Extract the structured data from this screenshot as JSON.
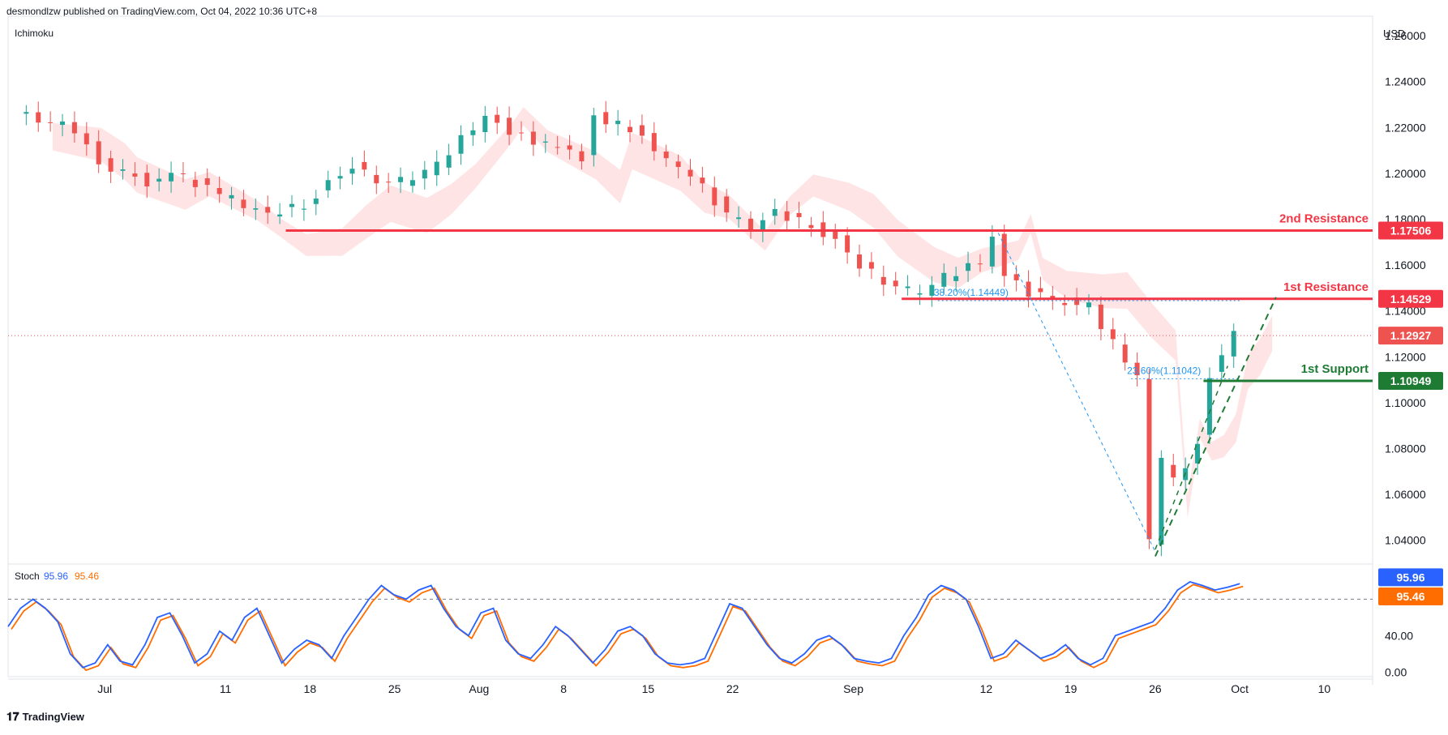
{
  "header": {
    "published": "desmondlzw published on TradingView.com, Oct 04, 2022 10:36 UTC+8"
  },
  "footer": {
    "brand": "TradingView",
    "logo_icon": "tradingview-logo-icon"
  },
  "colors": {
    "up": "#26a69a",
    "down": "#ef5350",
    "candle_up": "#26a69a",
    "candle_down": "#ef5350",
    "resistance": "#f23645",
    "support": "#1e7b34",
    "cloud_bull": "#a5d6a7",
    "cloud_bear": "#ffcdd2",
    "stoch_k": "#2962ff",
    "stoch_d": "#ff6d00"
  },
  "chart_data": [
    {
      "type": "candlestick",
      "indicator_label": "Ichimoku",
      "currency_label": "USD",
      "ylim": [
        1.03,
        1.265
      ],
      "y_ticks": [
        "1.26000",
        "1.24000",
        "1.22000",
        "1.20000",
        "1.18000",
        "1.16000",
        "1.14000",
        "1.12000",
        "1.10000",
        "1.08000",
        "1.06000",
        "1.04000"
      ],
      "x_ticks": [
        "Jul",
        "11",
        "18",
        "25",
        "Aug",
        "8",
        "15",
        "22",
        "Sep",
        "12",
        "19",
        "26",
        "Oct",
        "10"
      ],
      "last_price": "1.12927",
      "levels": [
        {
          "label": "2nd Resistance",
          "value": "1.17506",
          "kind": "resistance"
        },
        {
          "label": "1st Resistance",
          "value": "1.14529",
          "kind": "resistance"
        },
        {
          "label": "1st Support",
          "value": "1.10949",
          "kind": "support"
        }
      ],
      "fib_labels": [
        {
          "text": "38.20%(1.14449)",
          "value": 1.14449
        },
        {
          "text": "23.60%(1.11042)",
          "value": 1.11042
        }
      ],
      "price_path": [
        [
          "2022-06-24",
          1.226
        ],
        [
          "2022-06-28",
          1.221
        ],
        [
          "2022-06-30",
          1.212
        ],
        [
          "2022-07-01",
          1.205
        ],
        [
          "2022-07-05",
          1.196
        ],
        [
          "2022-07-07",
          1.201
        ],
        [
          "2022-07-11",
          1.191
        ],
        [
          "2022-07-13",
          1.186
        ],
        [
          "2022-07-15",
          1.182
        ],
        [
          "2022-07-18",
          1.186
        ],
        [
          "2022-07-20",
          1.196
        ],
        [
          "2022-07-22",
          1.203
        ],
        [
          "2022-07-25",
          1.195
        ],
        [
          "2022-07-27",
          1.198
        ],
        [
          "2022-07-29",
          1.204
        ],
        [
          "2022-08-01",
          1.22
        ],
        [
          "2022-08-02",
          1.227
        ],
        [
          "2022-08-04",
          1.218
        ],
        [
          "2022-08-08",
          1.211
        ],
        [
          "2022-08-10",
          1.206
        ],
        [
          "2022-08-11",
          1.225
        ],
        [
          "2022-08-15",
          1.217
        ],
        [
          "2022-08-17",
          1.206
        ],
        [
          "2022-08-19",
          1.2
        ],
        [
          "2022-08-22",
          1.182
        ],
        [
          "2022-08-24",
          1.176
        ],
        [
          "2022-08-26",
          1.183
        ],
        [
          "2022-08-29",
          1.177
        ],
        [
          "2022-08-31",
          1.171
        ],
        [
          "2022-09-02",
          1.16
        ],
        [
          "2022-09-05",
          1.15
        ],
        [
          "2022-09-07",
          1.148
        ],
        [
          "2022-09-09",
          1.155
        ],
        [
          "2022-09-12",
          1.161
        ],
        [
          "2022-09-13",
          1.174
        ],
        [
          "2022-09-14",
          1.155
        ],
        [
          "2022-09-16",
          1.148
        ],
        [
          "2022-09-19",
          1.144
        ],
        [
          "2022-09-21",
          1.142
        ],
        [
          "2022-09-23",
          1.126
        ],
        [
          "2022-09-25",
          1.112
        ],
        [
          "2022-09-26",
          1.04
        ],
        [
          "2022-09-27",
          1.074
        ],
        [
          "2022-09-28",
          1.066
        ],
        [
          "2022-09-29",
          1.072
        ],
        [
          "2022-09-30",
          1.084
        ],
        [
          "2022-10-01",
          1.112
        ],
        [
          "2022-10-02",
          1.12
        ],
        [
          "2022-10-03",
          1.1293
        ]
      ]
    },
    {
      "type": "line",
      "indicator_label": "Stoch",
      "k_label": "95.96",
      "d_label": "95.46",
      "ylim": [
        -5,
        115
      ],
      "y_ticks": [
        "40.00",
        "0.00"
      ],
      "overbought_line": 80,
      "series": [
        {
          "name": "95.96",
          "values": [
            50,
            70,
            80,
            70,
            55,
            20,
            5,
            10,
            30,
            12,
            8,
            30,
            60,
            65,
            40,
            10,
            20,
            45,
            35,
            60,
            70,
            40,
            10,
            25,
            35,
            30,
            15,
            40,
            60,
            80,
            95,
            85,
            80,
            90,
            95,
            70,
            50,
            40,
            65,
            70,
            35,
            20,
            15,
            30,
            50,
            40,
            25,
            10,
            25,
            45,
            50,
            40,
            20,
            10,
            8,
            10,
            15,
            45,
            75,
            70,
            50,
            30,
            15,
            10,
            20,
            35,
            40,
            30,
            15,
            12,
            10,
            15,
            40,
            60,
            85,
            95,
            90,
            80,
            50,
            15,
            20,
            35,
            25,
            15,
            20,
            30,
            15,
            8,
            15,
            40,
            45,
            50,
            55,
            70,
            90,
            99,
            95,
            90,
            93,
            97
          ]
        }
      ]
    }
  ]
}
